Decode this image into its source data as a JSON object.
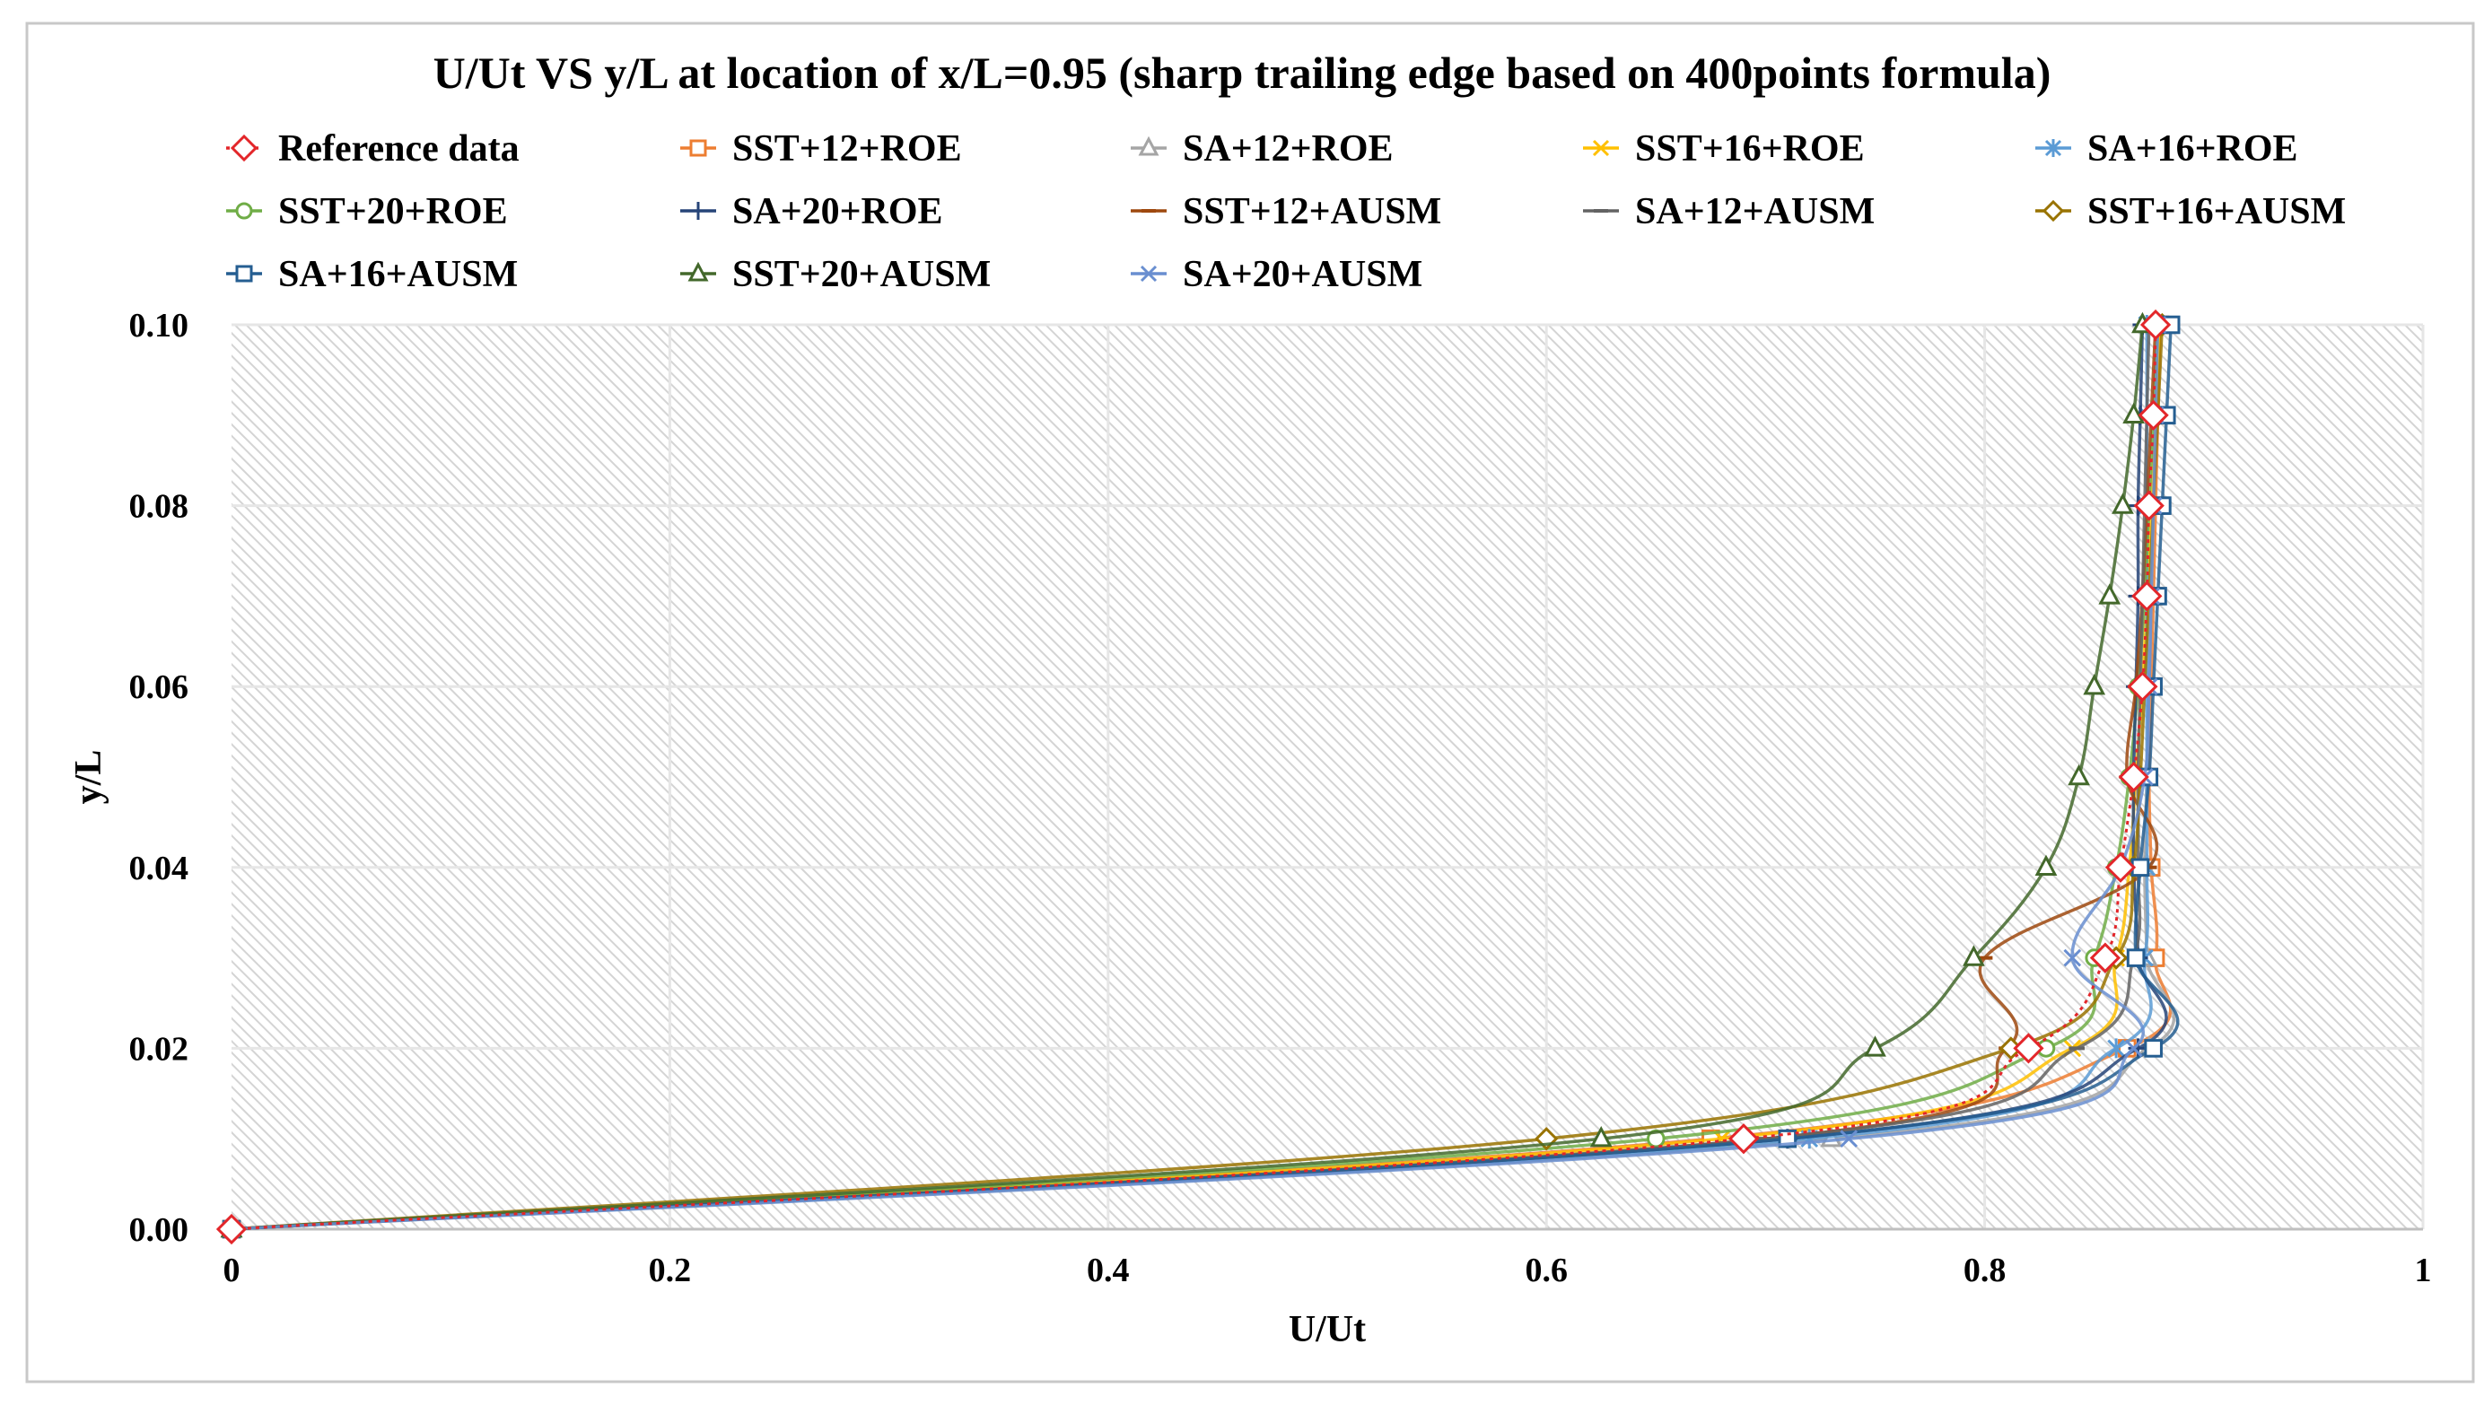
{
  "chart_data": {
    "type": "scatter",
    "title": "U/Ut VS y/L at location of x/L=0.95 (sharp trailing edge based on 400points formula)",
    "xlabel": "U/Ut",
    "ylabel": "y/L",
    "xlim": [
      0,
      1
    ],
    "ylim": [
      0,
      0.1
    ],
    "x_ticks": [
      "0",
      "0.2",
      "0.4",
      "0.6",
      "0.8",
      "1"
    ],
    "y_ticks": [
      "0.00",
      "0.02",
      "0.04",
      "0.06",
      "0.08",
      "0.10"
    ],
    "grid": true,
    "legend_position": "top",
    "series": [
      {
        "name": "Reference data",
        "color": "#e3262a",
        "marker": "diamond",
        "line": "dotted",
        "x": [
          0.0,
          0.69,
          0.82,
          0.855,
          0.862,
          0.868,
          0.872,
          0.874,
          0.875,
          0.877,
          0.878
        ],
        "y": [
          0.0,
          0.01,
          0.02,
          0.03,
          0.04,
          0.05,
          0.06,
          0.07,
          0.08,
          0.09,
          0.1
        ]
      },
      {
        "name": "SST+12+ROE",
        "color": "#ed7d31",
        "marker": "square",
        "line": "solid",
        "x": [
          0.0,
          0.675,
          0.865,
          0.878,
          0.876,
          0.875,
          0.876,
          0.877,
          0.878,
          0.879,
          0.88
        ],
        "y": [
          0.0,
          0.01,
          0.02,
          0.03,
          0.04,
          0.05,
          0.06,
          0.07,
          0.08,
          0.09,
          0.1
        ]
      },
      {
        "name": "SA+12+ROE",
        "color": "#a5a5a5",
        "marker": "triangle",
        "line": "solid",
        "x": [
          0.0,
          0.73,
          0.875,
          0.874,
          0.873,
          0.874,
          0.875,
          0.876,
          0.877,
          0.878,
          0.879
        ],
        "y": [
          0.0,
          0.01,
          0.02,
          0.03,
          0.04,
          0.05,
          0.06,
          0.07,
          0.08,
          0.09,
          0.1
        ]
      },
      {
        "name": "SST+16+ROE",
        "color": "#ffc000",
        "marker": "x",
        "line": "solid",
        "x": [
          0.0,
          0.68,
          0.84,
          0.86,
          0.866,
          0.869,
          0.872,
          0.874,
          0.876,
          0.878,
          0.88
        ],
        "y": [
          0.0,
          0.01,
          0.02,
          0.03,
          0.04,
          0.05,
          0.06,
          0.07,
          0.08,
          0.09,
          0.1
        ]
      },
      {
        "name": "SA+16+ROE",
        "color": "#5b9bd5",
        "marker": "asterisk",
        "line": "solid",
        "x": [
          0.0,
          0.72,
          0.86,
          0.873,
          0.874,
          0.874,
          0.874,
          0.874,
          0.874,
          0.874,
          0.874
        ],
        "y": [
          0.0,
          0.01,
          0.02,
          0.03,
          0.04,
          0.05,
          0.06,
          0.07,
          0.08,
          0.09,
          0.1
        ]
      },
      {
        "name": "SST+20+ROE",
        "color": "#70ad47",
        "marker": "circle",
        "line": "solid",
        "x": [
          0.0,
          0.65,
          0.828,
          0.85,
          0.86,
          0.866,
          0.87,
          0.873,
          0.875,
          0.877,
          0.879
        ],
        "y": [
          0.0,
          0.01,
          0.02,
          0.03,
          0.04,
          0.05,
          0.06,
          0.07,
          0.08,
          0.09,
          0.1
        ]
      },
      {
        "name": "SA+20+ROE",
        "color": "#264478",
        "marker": "plus",
        "line": "solid",
        "x": [
          0.0,
          0.71,
          0.87,
          0.87,
          0.868,
          0.868,
          0.869,
          0.87,
          0.87,
          0.871,
          0.872
        ],
        "y": [
          0.0,
          0.01,
          0.02,
          0.03,
          0.04,
          0.05,
          0.06,
          0.07,
          0.08,
          0.09,
          0.1
        ]
      },
      {
        "name": "SST+12+AUSM",
        "color": "#9e480e",
        "marker": "dash",
        "line": "solid",
        "x": [
          0.0,
          0.7,
          0.81,
          0.8,
          0.875,
          0.865,
          0.869,
          0.872,
          0.874,
          0.876,
          0.878
        ],
        "y": [
          0.0,
          0.01,
          0.02,
          0.03,
          0.04,
          0.05,
          0.06,
          0.07,
          0.08,
          0.09,
          0.1
        ]
      },
      {
        "name": "SA+12+AUSM",
        "color": "#636363",
        "marker": "dash",
        "line": "solid",
        "x": [
          0.0,
          0.7,
          0.842,
          0.868,
          0.87,
          0.87,
          0.871,
          0.872,
          0.873,
          0.874,
          0.875
        ],
        "y": [
          0.0,
          0.01,
          0.02,
          0.03,
          0.04,
          0.05,
          0.06,
          0.07,
          0.08,
          0.09,
          0.1
        ]
      },
      {
        "name": "SST+16+AUSM",
        "color": "#997300",
        "marker": "diamond",
        "line": "solid",
        "x": [
          0.0,
          0.6,
          0.812,
          0.86,
          0.868,
          0.871,
          0.873,
          0.875,
          0.877,
          0.879,
          0.881
        ],
        "y": [
          0.0,
          0.01,
          0.02,
          0.03,
          0.04,
          0.05,
          0.06,
          0.07,
          0.08,
          0.09,
          0.1
        ]
      },
      {
        "name": "SA+16+AUSM",
        "color": "#255e91",
        "marker": "square",
        "line": "solid",
        "x": [
          0.0,
          0.71,
          0.877,
          0.869,
          0.871,
          0.875,
          0.877,
          0.879,
          0.881,
          0.883,
          0.885
        ],
        "y": [
          0.0,
          0.01,
          0.02,
          0.03,
          0.04,
          0.05,
          0.06,
          0.07,
          0.08,
          0.09,
          0.1
        ]
      },
      {
        "name": "SST+20+AUSM",
        "color": "#43682b",
        "marker": "triangle",
        "line": "solid",
        "x": [
          0.0,
          0.625,
          0.75,
          0.795,
          0.828,
          0.843,
          0.85,
          0.857,
          0.863,
          0.868,
          0.872
        ],
        "y": [
          0.0,
          0.01,
          0.02,
          0.03,
          0.04,
          0.05,
          0.06,
          0.07,
          0.08,
          0.09,
          0.1
        ]
      },
      {
        "name": "SA+20+AUSM",
        "color": "#698ed0",
        "marker": "x",
        "line": "solid",
        "x": [
          0.0,
          0.738,
          0.868,
          0.84,
          0.862,
          0.873,
          0.875,
          0.876,
          0.877,
          0.878,
          0.879
        ],
        "y": [
          0.0,
          0.01,
          0.02,
          0.03,
          0.04,
          0.05,
          0.06,
          0.07,
          0.08,
          0.09,
          0.1
        ]
      }
    ]
  }
}
